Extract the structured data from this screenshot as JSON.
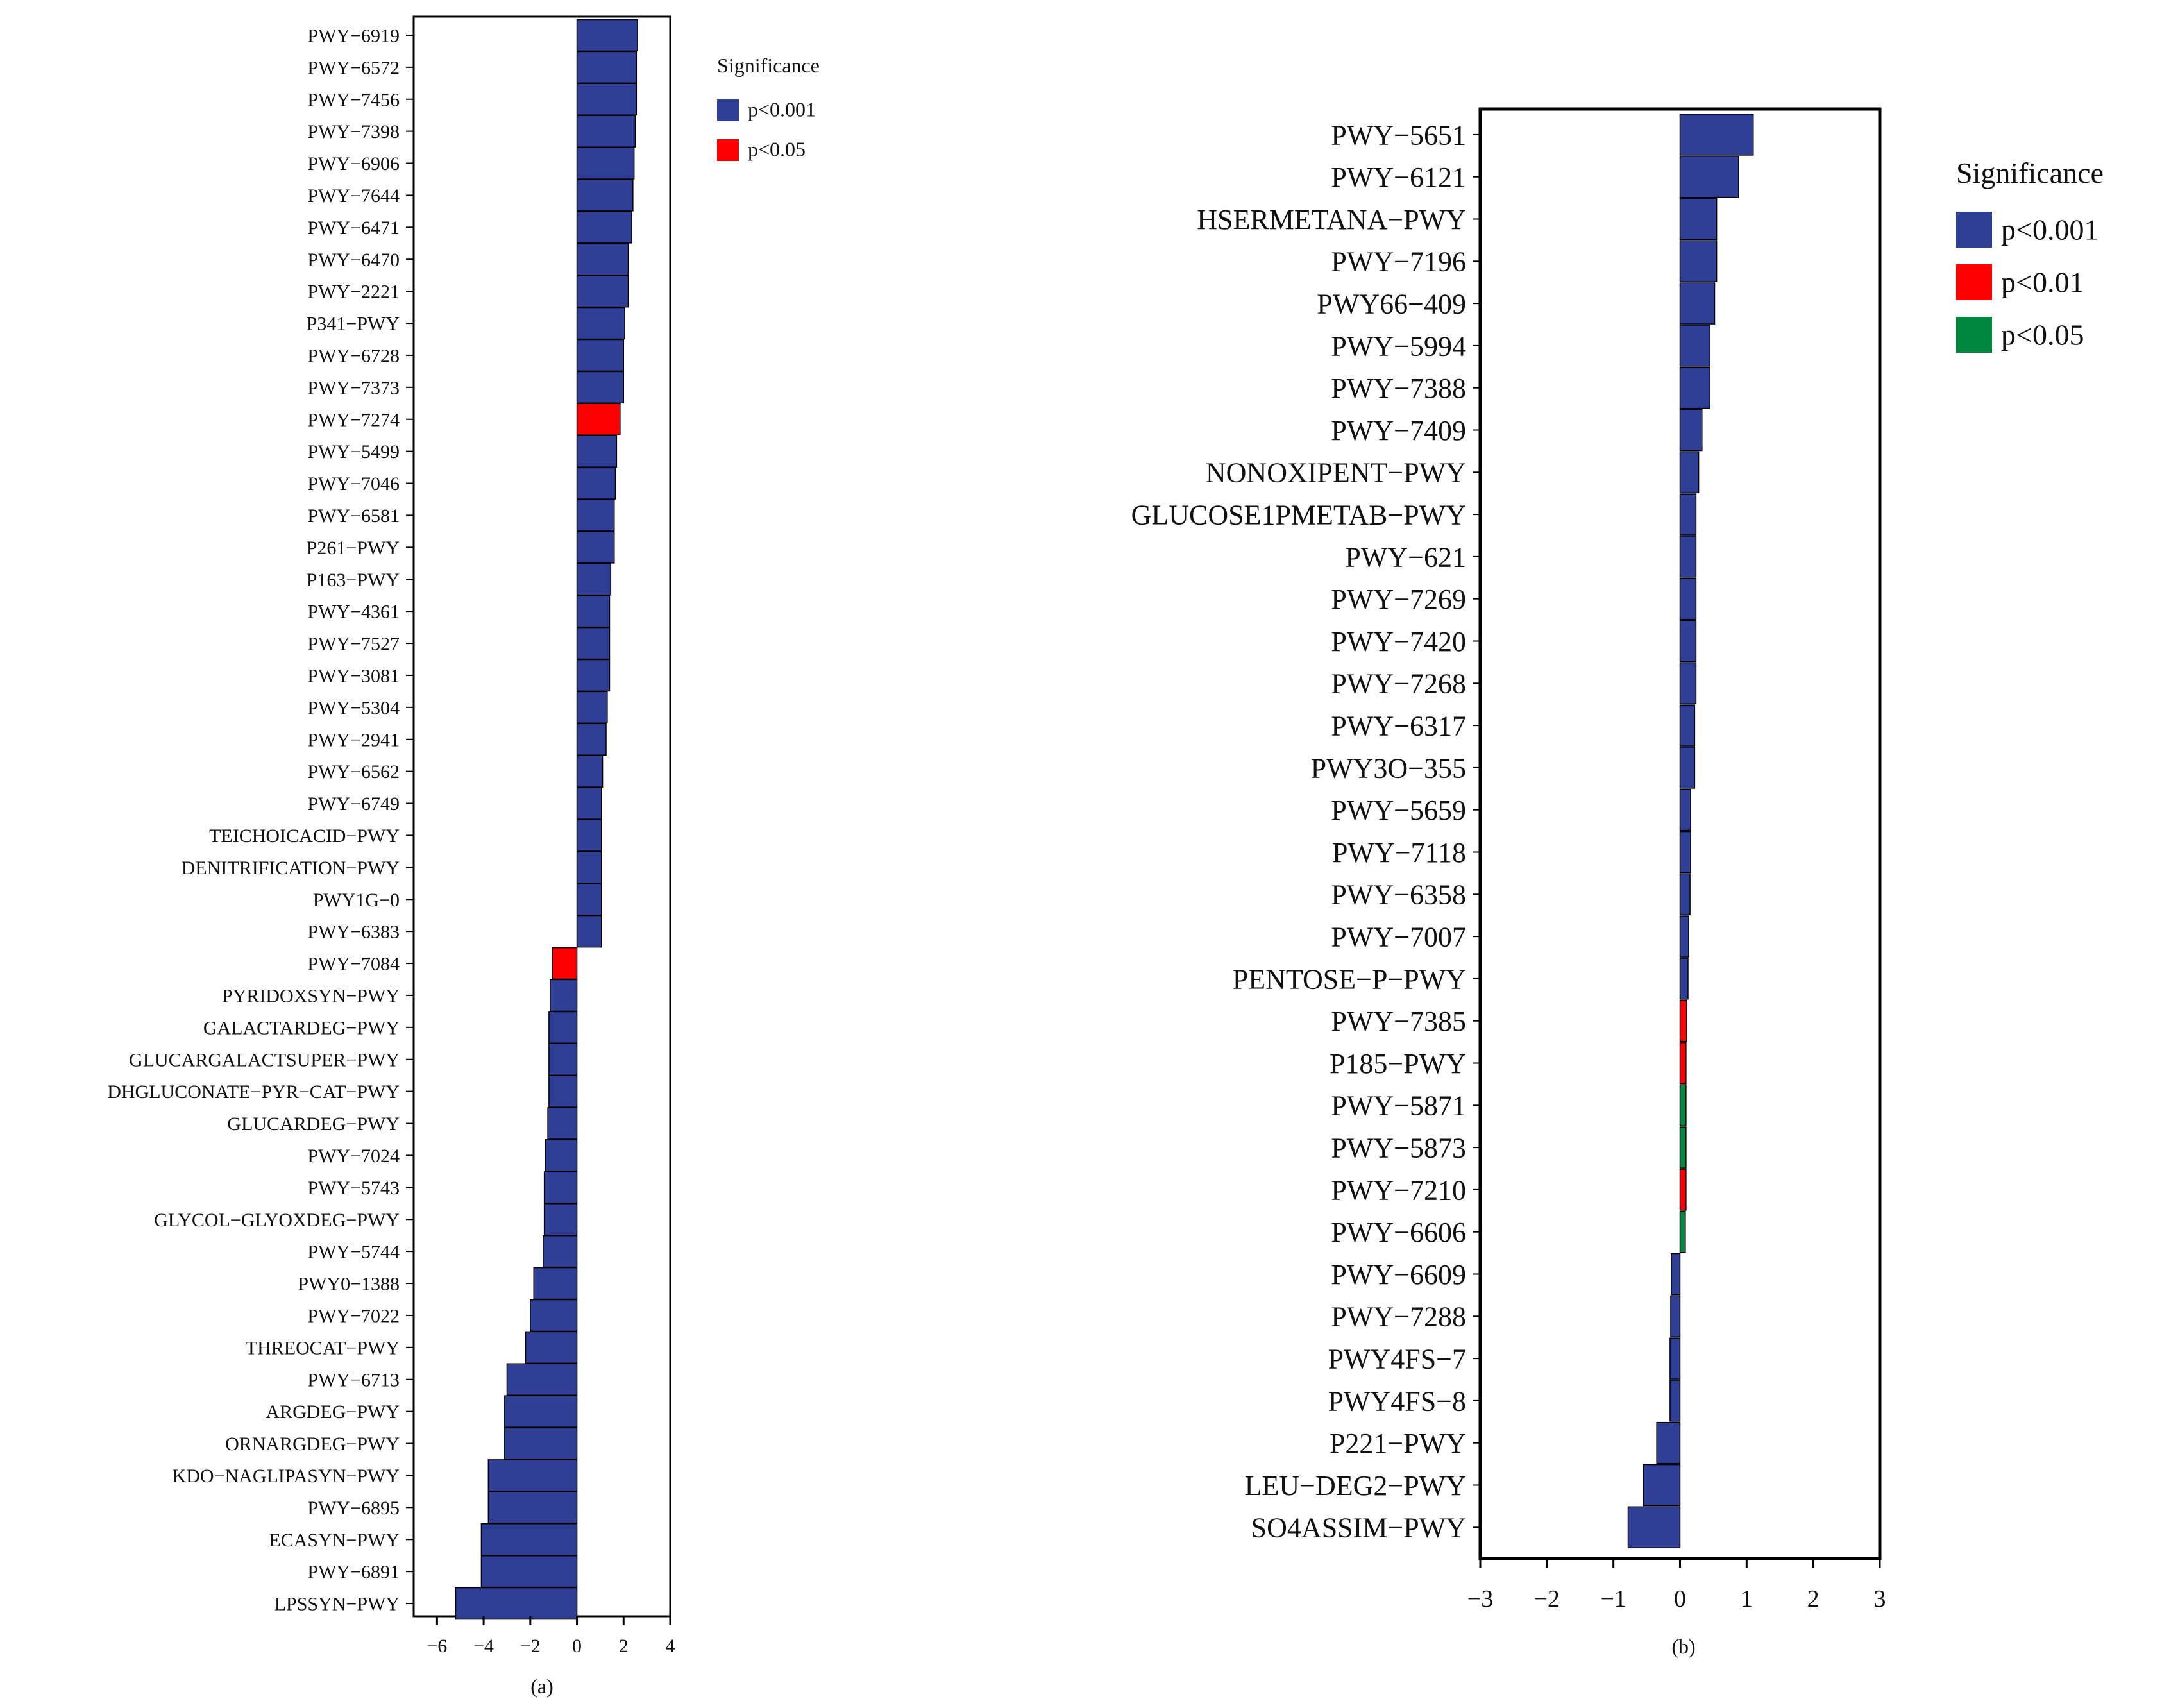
{
  "figure": {
    "panel_a_caption": "(a)",
    "panel_b_caption": "(b)"
  },
  "colors": {
    "p001": "#2f3f95",
    "p01": "#ff0000",
    "p05": "#00873f",
    "frame": "#000000"
  },
  "chart_data": [
    {
      "type": "bar",
      "orientation": "horizontal",
      "panel": "a",
      "xlim": [
        -7,
        4
      ],
      "xticks": [
        -6,
        -4,
        -2,
        0,
        2,
        4
      ],
      "legend": {
        "title": "Significance",
        "entries": [
          {
            "key": "p001",
            "label": "p<0.001"
          },
          {
            "key": "p05",
            "label": "p<0.05",
            "color_key": "p01"
          }
        ]
      },
      "categories": [
        "PWY-6919",
        "PWY-6572",
        "PWY-7456",
        "PWY-7398",
        "PWY-6906",
        "PWY-7644",
        "PWY-6471",
        "PWY-6470",
        "PWY-2221",
        "P341-PWY",
        "PWY-6728",
        "PWY-7373",
        "PWY-7274",
        "PWY-5499",
        "PWY-7046",
        "PWY-6581",
        "P261-PWY",
        "P163-PWY",
        "PWY-4361",
        "PWY-7527",
        "PWY-3081",
        "PWY-5304",
        "PWY-2941",
        "PWY-6562",
        "PWY-6749",
        "TEICHOICACID-PWY",
        "DENITRIFICATION-PWY",
        "PWY1G-0",
        "PWY-6383",
        "PWY-7084",
        "PYRIDOXSYN-PWY",
        "GALACTARDEG-PWY",
        "GLUCARGALACTSUPER-PWY",
        "DHGLUCONATE-PYR-CAT-PWY",
        "GLUCARDEG-PWY",
        "PWY-7024",
        "PWY-5743",
        "GLYCOL-GLYOXDEG-PWY",
        "PWY-5744",
        "PWY0-1388",
        "PWY-7022",
        "THREOCAT-PWY",
        "PWY-6713",
        "ARGDEG-PWY",
        "ORNARGDEG-PWY",
        "KDO-NAGLIPASYN-PWY",
        "PWY-6895",
        "ECASYN-PWY",
        "PWY-6891",
        "LPSSYN-PWY"
      ],
      "values": [
        2.6,
        2.55,
        2.55,
        2.5,
        2.45,
        2.4,
        2.35,
        2.2,
        2.2,
        2.05,
        2.0,
        2.0,
        1.85,
        1.7,
        1.65,
        1.6,
        1.6,
        1.45,
        1.4,
        1.4,
        1.4,
        1.3,
        1.25,
        1.1,
        1.05,
        1.05,
        1.05,
        1.05,
        1.05,
        -1.05,
        -1.15,
        -1.2,
        -1.2,
        -1.2,
        -1.25,
        -1.35,
        -1.4,
        -1.4,
        -1.45,
        -1.85,
        -2.0,
        -2.2,
        -3.0,
        -3.1,
        -3.1,
        -3.8,
        -3.8,
        -4.1,
        -4.1,
        -5.2
      ],
      "significance": [
        "p001",
        "p001",
        "p001",
        "p001",
        "p001",
        "p001",
        "p001",
        "p001",
        "p001",
        "p001",
        "p001",
        "p001",
        "p01",
        "p001",
        "p001",
        "p001",
        "p001",
        "p001",
        "p001",
        "p001",
        "p001",
        "p001",
        "p001",
        "p001",
        "p001",
        "p001",
        "p001",
        "p001",
        "p001",
        "p01",
        "p001",
        "p001",
        "p001",
        "p001",
        "p001",
        "p001",
        "p001",
        "p001",
        "p001",
        "p001",
        "p001",
        "p001",
        "p001",
        "p001",
        "p001",
        "p001",
        "p001",
        "p001",
        "p001",
        "p001"
      ]
    },
    {
      "type": "bar",
      "orientation": "horizontal",
      "panel": "b",
      "xlim": [
        -3,
        3
      ],
      "xticks": [
        -3,
        -2,
        -1,
        0,
        1,
        2,
        3
      ],
      "legend": {
        "title": "Significance",
        "entries": [
          {
            "key": "p001",
            "label": "p<0.001"
          },
          {
            "key": "p01",
            "label": "p<0.01"
          },
          {
            "key": "p05",
            "label": "p<0.05"
          }
        ]
      },
      "categories": [
        "PWY-5651",
        "PWY-6121",
        "HSERMETANA-PWY",
        "PWY-7196",
        "PWY66-409",
        "PWY-5994",
        "PWY-7388",
        "PWY-7409",
        "NONOXIPENT-PWY",
        "GLUCOSE1PMETAB-PWY",
        "PWY-621",
        "PWY-7269",
        "PWY-7420",
        "PWY-7268",
        "PWY-6317",
        "PWY3O-355",
        "PWY-5659",
        "PWY-7118",
        "PWY-6358",
        "PWY-7007",
        "PENTOSE-P-PWY",
        "PWY-7385",
        "P185-PWY",
        "PWY-5871",
        "PWY-5873",
        "PWY-7210",
        "PWY-6606",
        "PWY-6609",
        "PWY-7288",
        "PWY4FS-7",
        "PWY4FS-8",
        "P221-PWY",
        "LEU-DEG2-PWY",
        "SO4ASSIM-PWY"
      ],
      "values": [
        1.1,
        0.88,
        0.55,
        0.55,
        0.52,
        0.45,
        0.45,
        0.33,
        0.28,
        0.24,
        0.24,
        0.24,
        0.24,
        0.24,
        0.22,
        0.22,
        0.16,
        0.16,
        0.15,
        0.13,
        0.12,
        0.1,
        0.09,
        0.09,
        0.09,
        0.09,
        0.08,
        -0.13,
        -0.14,
        -0.15,
        -0.15,
        -0.35,
        -0.55,
        -0.78
      ],
      "significance": [
        "p001",
        "p001",
        "p001",
        "p001",
        "p001",
        "p001",
        "p001",
        "p001",
        "p001",
        "p001",
        "p001",
        "p001",
        "p001",
        "p001",
        "p001",
        "p001",
        "p001",
        "p001",
        "p001",
        "p001",
        "p001",
        "p01",
        "p01",
        "p05",
        "p05",
        "p01",
        "p05",
        "p001",
        "p001",
        "p001",
        "p001",
        "p001",
        "p001",
        "p001"
      ]
    }
  ]
}
